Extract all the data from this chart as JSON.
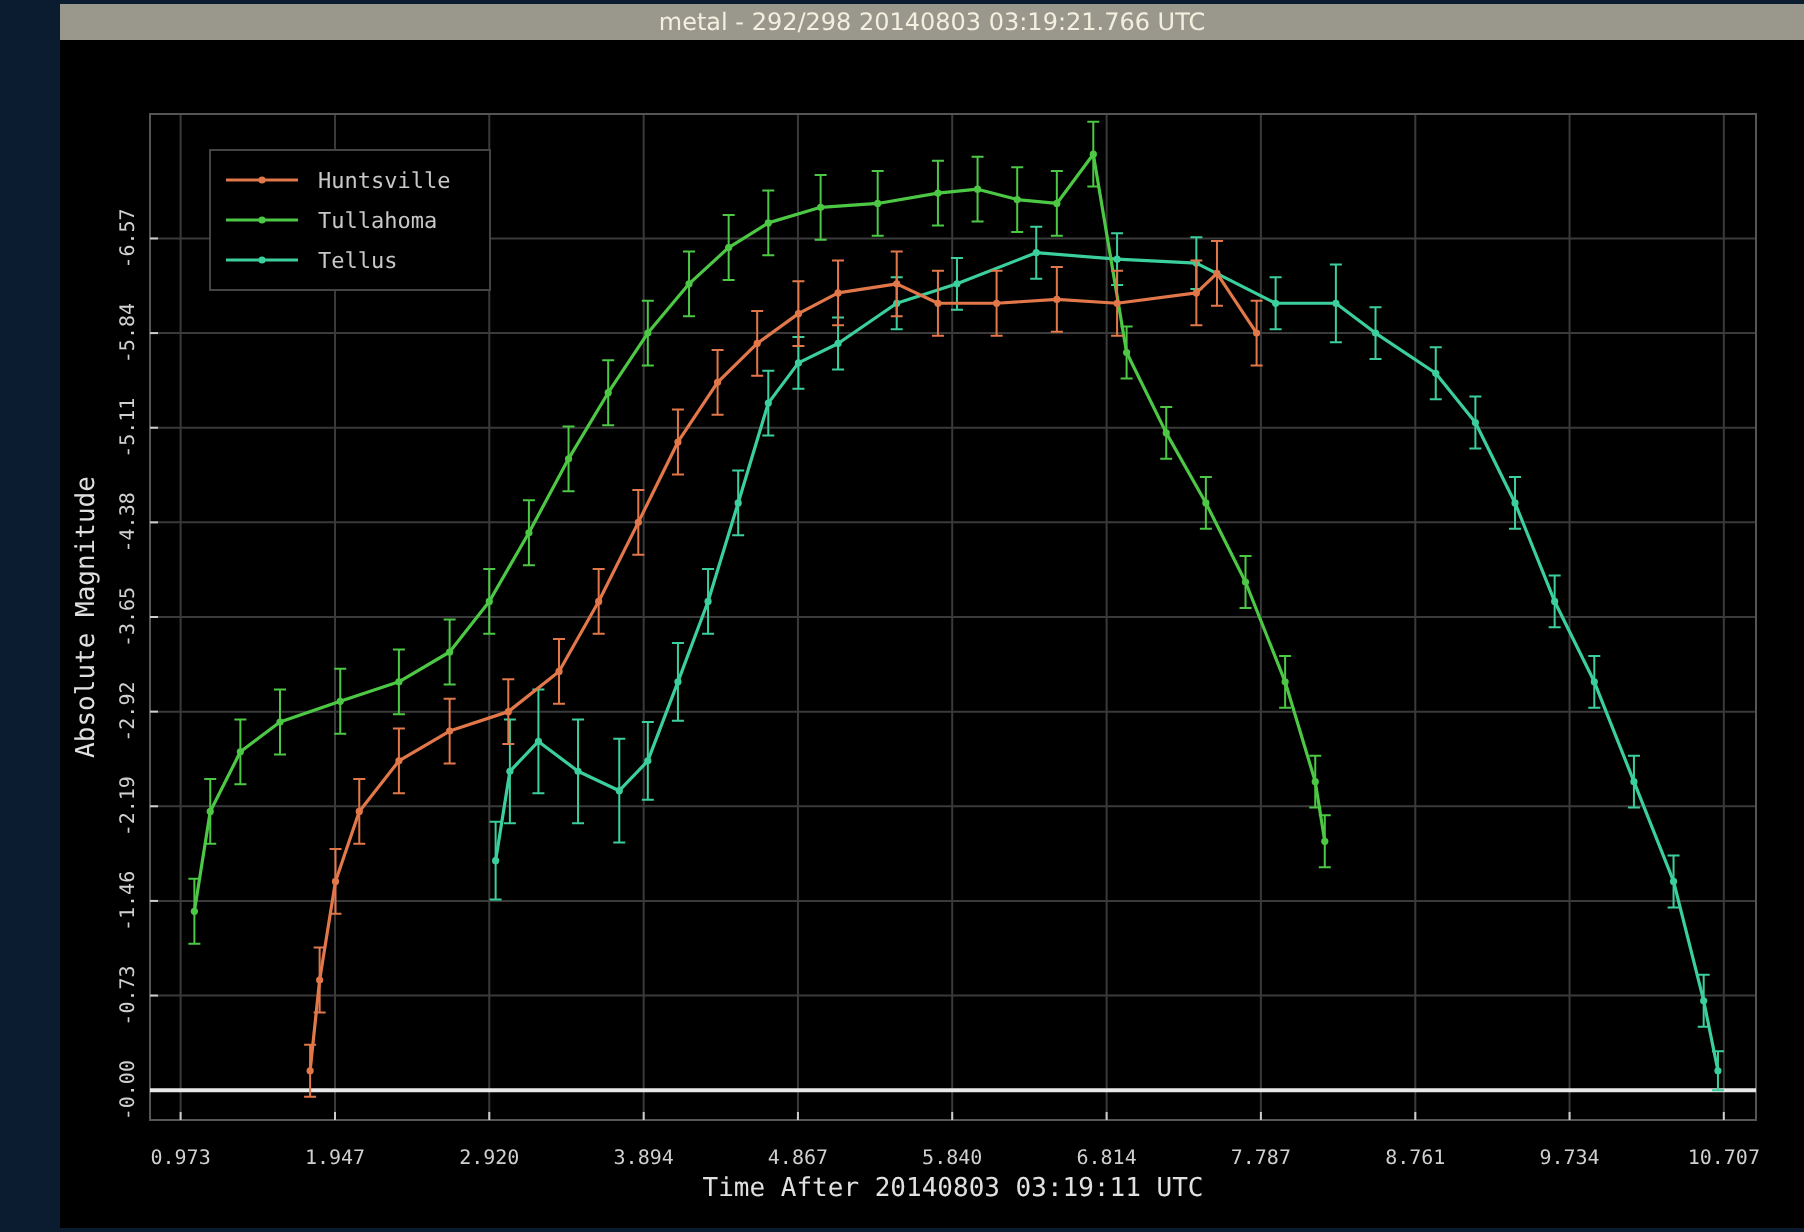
{
  "chart_data": {
    "type": "line",
    "title": "metal - 292/298 20140803 03:19:21.766 UTC",
    "xlabel": "Time After 20140803 03:19:11 UTC",
    "ylabel": "Absolute Magnitude",
    "xlim": [
      0.78,
      10.91
    ],
    "xticks": [
      0.973,
      1.947,
      {
        "value": 2.92,
        "label": "2.920"
      },
      3.894,
      4.867,
      {
        "value": 5.84,
        "label": "5.840"
      },
      6.814,
      7.787,
      8.761,
      9.734,
      10.707
    ],
    "ylim": [
      0.23,
      -7.53
    ],
    "yticks": [
      {
        "value": 0,
        "label": "-0.00"
      },
      -0.73,
      -1.46,
      -2.19,
      -2.92,
      -3.65,
      -4.38,
      -5.11,
      -5.84,
      -6.57
    ],
    "grid": true,
    "legend": "top left",
    "marker": "circle",
    "line_style": "solid",
    "ref_lines": [
      {
        "axis": "y",
        "value": 0,
        "color": "#e8e8e8"
      }
    ],
    "series": [
      {
        "name": "Huntsville",
        "color": "#e2784a",
        "x": [
          1.79,
          1.85,
          1.95,
          2.1,
          2.35,
          2.67,
          3.04,
          3.36,
          3.61,
          3.86,
          4.11,
          4.36,
          4.61,
          4.87,
          5.12,
          5.49,
          5.75,
          6.12,
          6.5,
          6.88,
          7.38,
          7.51,
          7.76
        ],
        "values": [
          -0.15,
          -0.85,
          -1.61,
          -2.15,
          -2.54,
          -2.77,
          -2.92,
          -3.23,
          -3.77,
          -4.38,
          -5.0,
          -5.46,
          -5.76,
          -5.99,
          -6.15,
          -6.22,
          -6.07,
          -6.07,
          -6.1,
          -6.07,
          -6.15,
          -6.3,
          -5.84
        ],
        "errors": [
          0.2,
          0.25,
          0.25,
          0.25,
          0.25,
          0.25,
          0.25,
          0.25,
          0.25,
          0.25,
          0.25,
          0.25,
          0.25,
          0.25,
          0.25,
          0.25,
          0.25,
          0.25,
          0.25,
          0.25,
          0.25,
          0.25,
          0.25
        ]
      },
      {
        "name": "Tullahoma",
        "color": "#4cc845",
        "x": [
          1.06,
          1.16,
          1.35,
          1.6,
          1.98,
          2.35,
          2.67,
          2.92,
          3.17,
          3.42,
          3.67,
          3.92,
          4.18,
          4.43,
          4.68,
          5.01,
          5.37,
          5.75,
          6.0,
          6.25,
          6.5,
          6.73,
          6.94,
          7.19,
          7.44,
          7.69,
          7.94,
          8.13,
          8.19
        ],
        "values": [
          -1.38,
          -2.15,
          -2.61,
          -2.84,
          -3.0,
          -3.15,
          -3.38,
          -3.77,
          -4.3,
          -4.87,
          -5.38,
          -5.84,
          -6.22,
          -6.5,
          -6.69,
          -6.81,
          -6.84,
          -6.92,
          -6.95,
          -6.87,
          -6.84,
          -7.22,
          -5.69,
          -5.07,
          -4.53,
          -3.92,
          -3.15,
          -2.38,
          -1.92
        ],
        "errors": [
          0.25,
          0.25,
          0.25,
          0.25,
          0.25,
          0.25,
          0.25,
          0.25,
          0.25,
          0.25,
          0.25,
          0.25,
          0.25,
          0.25,
          0.25,
          0.25,
          0.25,
          0.25,
          0.25,
          0.25,
          0.25,
          0.25,
          0.2,
          0.2,
          0.2,
          0.2,
          0.2,
          0.2,
          0.2
        ]
      },
      {
        "name": "Tellus",
        "color": "#3ccf9e",
        "x": [
          2.96,
          3.05,
          3.23,
          3.48,
          3.74,
          3.92,
          4.11,
          4.3,
          4.49,
          4.68,
          4.87,
          5.12,
          5.49,
          5.87,
          6.37,
          6.88,
          7.38,
          7.88,
          8.26,
          8.51,
          8.89,
          9.14,
          9.39,
          9.64,
          9.89,
          10.14,
          10.39,
          10.58,
          10.67
        ],
        "values": [
          -1.77,
          -2.46,
          -2.69,
          -2.46,
          -2.31,
          -2.54,
          -3.15,
          -3.77,
          -4.53,
          -5.3,
          -5.61,
          -5.76,
          -6.07,
          -6.22,
          -6.46,
          -6.41,
          -6.38,
          -6.07,
          -6.07,
          -5.84,
          -5.53,
          -5.15,
          -4.53,
          -3.77,
          -3.15,
          -2.38,
          -1.61,
          -0.69,
          -0.15
        ],
        "errors": [
          0.3,
          0.4,
          0.4,
          0.4,
          0.4,
          0.3,
          0.3,
          0.25,
          0.25,
          0.25,
          0.2,
          0.2,
          0.2,
          0.2,
          0.2,
          0.2,
          0.2,
          0.2,
          0.3,
          0.2,
          0.2,
          0.2,
          0.2,
          0.2,
          0.2,
          0.2,
          0.2,
          0.2,
          0.15
        ]
      }
    ]
  }
}
